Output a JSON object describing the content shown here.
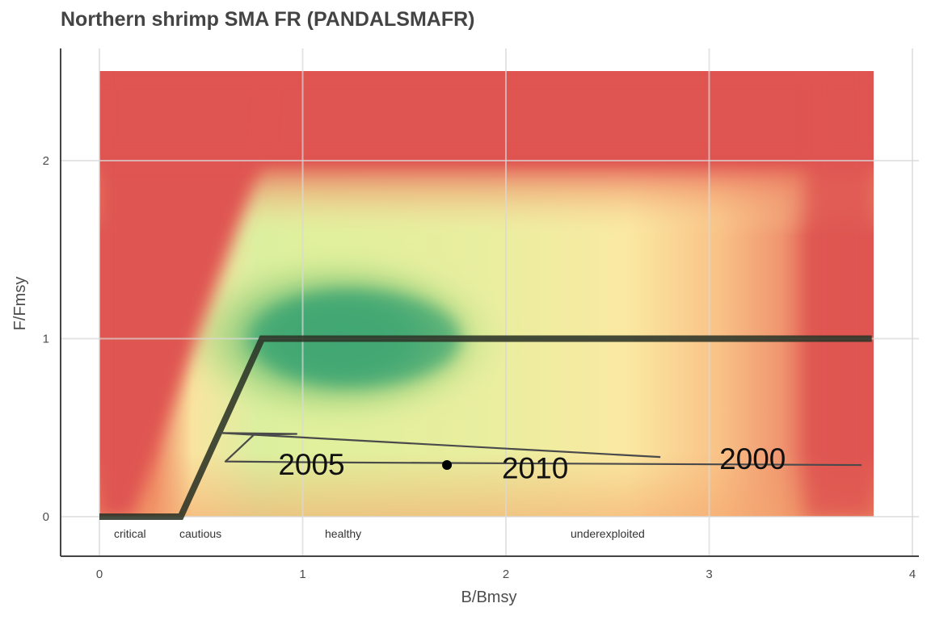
{
  "chart_data": {
    "type": "line",
    "title": "Northern shrimp SMA FR (PANDALSMAFR)",
    "xlabel": "B/Bmsy",
    "ylabel": "F/Fmsy",
    "xlim": [
      -0.2,
      4.05
    ],
    "ylim": [
      -0.23,
      2.55
    ],
    "x_ticks": [
      "0",
      "1",
      "2",
      "3",
      "4"
    ],
    "y_ticks": [
      "0",
      "1",
      "2"
    ],
    "grid": true,
    "background": "kobe-style heat map: green near B/Bmsy 0.8-1.5 and F/Fmsy 1, fading through yellow/orange to red",
    "harvest_control_rule": {
      "x": [
        0,
        0.4,
        0.8,
        3.8
      ],
      "y": [
        0,
        0,
        1,
        1
      ]
    },
    "zones": [
      {
        "label": "critical",
        "x": 0.1
      },
      {
        "label": "cautious",
        "x": 0.5
      },
      {
        "label": "healthy",
        "x": 1.2
      },
      {
        "label": "underexploited",
        "x": 2.5
      }
    ],
    "trajectory": {
      "x": [
        2.76,
        0.6,
        0.97,
        0.76,
        0.62,
        1.1,
        3.75
      ],
      "y": [
        0.335,
        0.47,
        0.465,
        0.46,
        0.31,
        0.305,
        0.29
      ]
    },
    "current_point": {
      "x": 1.71,
      "y": 0.29,
      "year": "2010"
    },
    "year_labels": [
      {
        "text": "2000",
        "x": 3.05,
        "y": 0.33
      },
      {
        "text": "2005",
        "x": 0.88,
        "y": 0.3
      },
      {
        "text": "2010",
        "x": 1.98,
        "y": 0.28
      }
    ],
    "colors": {
      "red": "#DF5551",
      "orange": "#F4A56C",
      "yellow": "#F9E7A0",
      "light_green": "#DFF09A",
      "green": "#43A873",
      "hcr_line": "#2B3326",
      "trajectory_line": "#4A4A4A",
      "point": "#000000"
    }
  }
}
